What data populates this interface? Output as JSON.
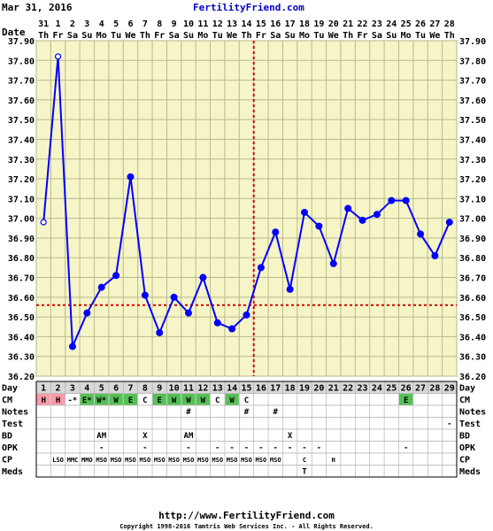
{
  "header": {
    "date": "Mar 31, 2016",
    "site": "FertilityFriend.com"
  },
  "footer": {
    "url": "http://www.FertilityFriend.com",
    "copyright": "Copyright 1998-2016 Tamtris Web Services Inc. - All Rights Reserved."
  },
  "colors": {
    "grid_bg": "#f5f5c8",
    "grid_line": "#b9b98a",
    "line": "#0000ff",
    "coverline": "#e00000",
    "ovulation": "#e00000",
    "cm_red": "#ff9aa8",
    "cm_green": "#55c055",
    "row_bg": "#ffffff"
  },
  "chart_data": {
    "type": "line",
    "title": "",
    "xlabel": "Day",
    "ylabel": "",
    "ylim": [
      36.2,
      37.9
    ],
    "yticks": [
      "37.90",
      "37.80",
      "37.70",
      "37.60",
      "37.50",
      "37.40",
      "37.30",
      "37.20",
      "37.10",
      "37.00",
      "36.90",
      "36.80",
      "36.70",
      "36.60",
      "36.50",
      "36.40",
      "36.30",
      "36.20"
    ],
    "date_labels": [
      "31",
      "1",
      "2",
      "3",
      "4",
      "5",
      "6",
      "7",
      "8",
      "9",
      "10",
      "11",
      "12",
      "13",
      "14",
      "15",
      "16",
      "17",
      "18",
      "19",
      "20",
      "21",
      "22",
      "23",
      "24",
      "25",
      "26",
      "27",
      "28"
    ],
    "weekday_labels": [
      "Th",
      "Fr",
      "Sa",
      "Su",
      "Mo",
      "Tu",
      "We",
      "Th",
      "Fr",
      "Sa",
      "Su",
      "Mo",
      "Tu",
      "We",
      "Th",
      "Fr",
      "Sa",
      "Su",
      "Mo",
      "Tu",
      "We",
      "Th",
      "Fr",
      "Sa",
      "Su",
      "Mo",
      "Tu",
      "We",
      "Th"
    ],
    "days": [
      1,
      2,
      3,
      4,
      5,
      6,
      7,
      8,
      9,
      10,
      11,
      12,
      13,
      14,
      15,
      16,
      17,
      18,
      19,
      20,
      21,
      22,
      23,
      24,
      25,
      26,
      27,
      28,
      29
    ],
    "temps": [
      36.98,
      37.82,
      36.35,
      36.52,
      36.65,
      36.71,
      37.21,
      36.61,
      36.42,
      36.6,
      36.52,
      36.7,
      36.47,
      36.44,
      36.51,
      36.75,
      36.93,
      36.64,
      37.03,
      36.96,
      36.77,
      37.05,
      36.99,
      37.02,
      37.09,
      37.09,
      36.92,
      36.81,
      36.98
    ],
    "open_points": [
      1,
      2
    ],
    "coverline": 36.56,
    "ovulation_day": 15
  },
  "rows": {
    "labels": [
      "Day",
      "CM",
      "Notes",
      "Test",
      "BD",
      "OPK",
      "CP",
      "Meds"
    ],
    "cm": [
      "H",
      "H",
      "-*",
      "E*",
      "W*",
      "W",
      "E",
      "C",
      "E",
      "W",
      "W",
      "W",
      "C",
      "W",
      "C",
      "",
      "",
      "",
      "",
      "",
      "",
      "",
      "",
      "",
      "",
      "E",
      "",
      "",
      ""
    ],
    "cm_colors": [
      "red",
      "red",
      "",
      "green",
      "green",
      "green",
      "green",
      "",
      "green",
      "green",
      "green",
      "green",
      "",
      "green",
      "",
      "",
      "",
      "",
      "",
      "",
      "",
      "",
      "",
      "",
      "",
      "green",
      "",
      "",
      ""
    ],
    "notes": {
      "11": "#",
      "15": "#",
      "17": "#"
    },
    "test": {
      "29": "-"
    },
    "bd": {
      "5": "AM",
      "8": "X",
      "11": "AM",
      "18": "X"
    },
    "opk": {
      "5": "-",
      "8": "-",
      "11": "-",
      "13": "-",
      "14": "-",
      "15": "-",
      "16": "-",
      "17": "-",
      "18": "-",
      "19": "-",
      "20": "-",
      "26": "-"
    },
    "cp": {
      "2": "LSO",
      "3": "MMC",
      "4": "MMO",
      "5": "MSO",
      "6": "MSO",
      "7": "MSO",
      "8": "MSO",
      "9": "MSO",
      "10": "MSO",
      "11": "MSO",
      "12": "MSO",
      "13": "MSO",
      "14": "MSO",
      "15": "MSO",
      "16": "MSO",
      "17": "MSO",
      "19": "C",
      "21": "H"
    },
    "meds": {
      "19": "T"
    }
  }
}
